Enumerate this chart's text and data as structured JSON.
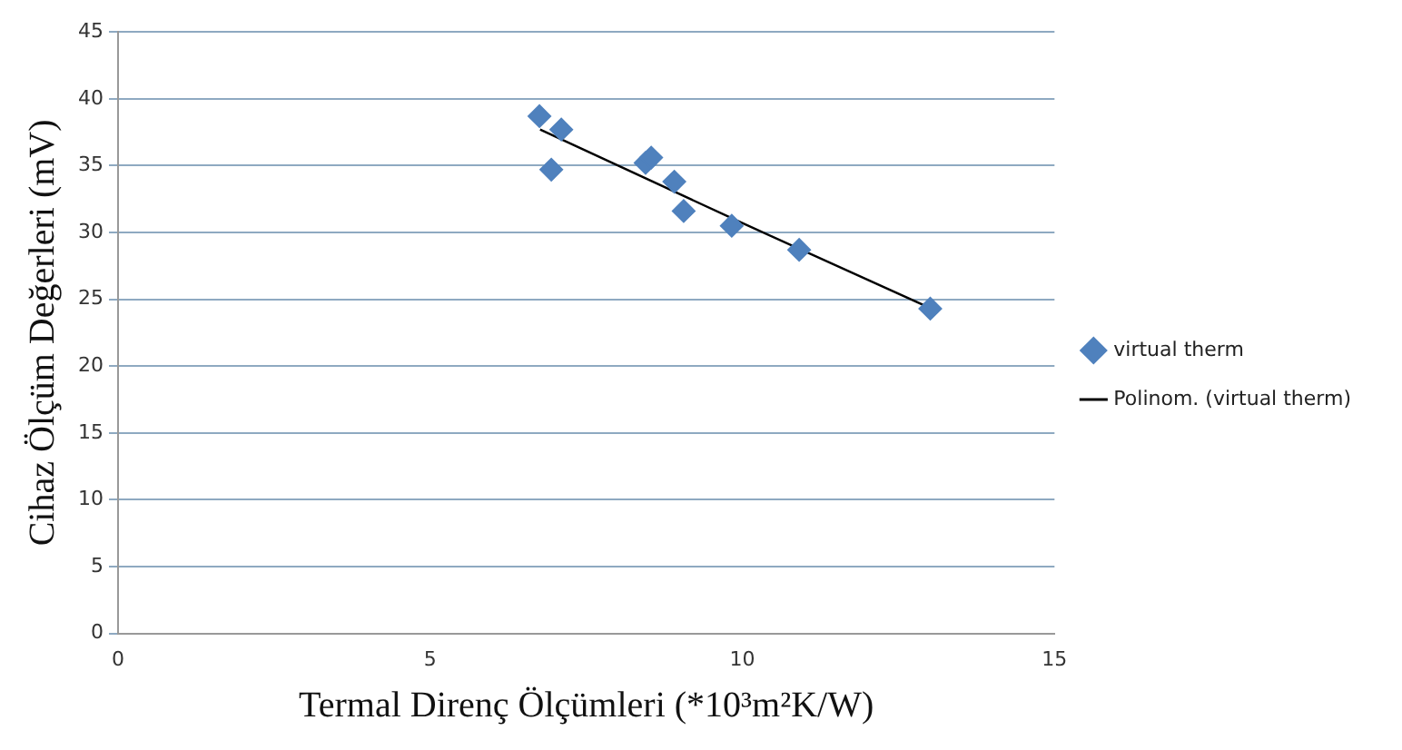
{
  "chart_data": {
    "type": "scatter",
    "xlabel": "Termal Direnç Ölçümleri (*10³m²K/W)",
    "ylabel": "Cihaz Ölçüm Değerleri (mV)",
    "xlim": [
      0,
      15
    ],
    "xticks": [
      0,
      5,
      10,
      15
    ],
    "ylim": [
      0,
      45
    ],
    "yticks": [
      0,
      5,
      10,
      15,
      20,
      25,
      30,
      35,
      40,
      45
    ],
    "grid": "y",
    "legend": "right",
    "series": [
      {
        "name": "virtual therm",
        "marker": "diamond",
        "color": "#4f81bd",
        "x": [
          6.75,
          7.1,
          6.94,
          8.45,
          8.54,
          8.91,
          9.06,
          9.83,
          10.91,
          13.01
        ],
        "values": [
          38.7,
          37.7,
          34.7,
          35.2,
          35.6,
          33.8,
          31.6,
          30.5,
          28.7,
          24.3
        ]
      },
      {
        "name": "Polinom. (virtual therm)",
        "type": "line",
        "marker": "none",
        "color": "#000000",
        "x": [
          6.76,
          10,
          12.98
        ],
        "values": [
          37.7,
          30.7,
          24.4
        ]
      }
    ]
  }
}
